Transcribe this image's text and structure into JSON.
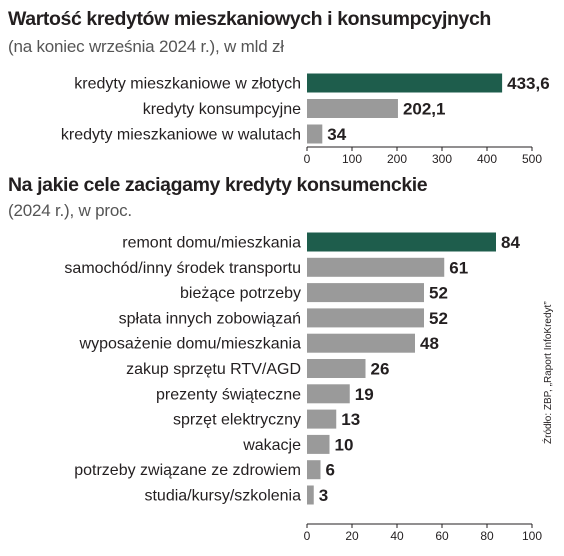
{
  "chart_data": [
    {
      "type": "bar",
      "orientation": "horizontal",
      "title": "Wartość kredytów mieszkaniowych i konsumpcyjnych",
      "subtitle": "(na koniec września 2024 r.), w mld zł",
      "categories": [
        "kredyty mieszkaniowe w złotych",
        "kredyty konsumpcyjne",
        "kredyty mieszkaniowe w walutach"
      ],
      "values": [
        433.6,
        202.1,
        34
      ],
      "value_labels": [
        "433,6",
        "202,1",
        "34"
      ],
      "xlim": [
        0,
        500
      ],
      "ticks": [
        0,
        100,
        200,
        300,
        400,
        500
      ],
      "tick_labels": [
        "0",
        "100",
        "200",
        "300",
        "400",
        "500"
      ],
      "grid": false,
      "highlight_color": "#1e5d4c",
      "bar_color": "#9a9a9a"
    },
    {
      "type": "bar",
      "orientation": "horizontal",
      "title": "Na jakie cele zaciągamy kredyty konsumenckie",
      "subtitle": "(2024 r.), w proc.",
      "categories": [
        "remont domu/mieszkania",
        "samochód/inny środek transportu",
        "bieżące potrzeby",
        "spłata innych zobowiązań",
        "wyposażenie domu/mieszkania",
        "zakup sprzętu RTV/AGD",
        "prezenty świąteczne",
        "sprzęt elektryczny",
        "wakacje",
        "potrzeby związane ze zdrowiem",
        "studia/kursy/szkolenia"
      ],
      "values": [
        84,
        61,
        52,
        52,
        48,
        26,
        19,
        13,
        10,
        6,
        3
      ],
      "value_labels": [
        "84",
        "61",
        "52",
        "52",
        "48",
        "26",
        "19",
        "13",
        "10",
        "6",
        "3"
      ],
      "xlim": [
        0,
        100
      ],
      "ticks": [
        0,
        20,
        40,
        60,
        80,
        100
      ],
      "tick_labels": [
        "0",
        "20",
        "40",
        "60",
        "80",
        "100"
      ],
      "grid": false,
      "highlight_color": "#1e5d4c",
      "bar_color": "#9a9a9a"
    }
  ],
  "source": "Źródło: ZBP, „Raport InfoKredyt”"
}
